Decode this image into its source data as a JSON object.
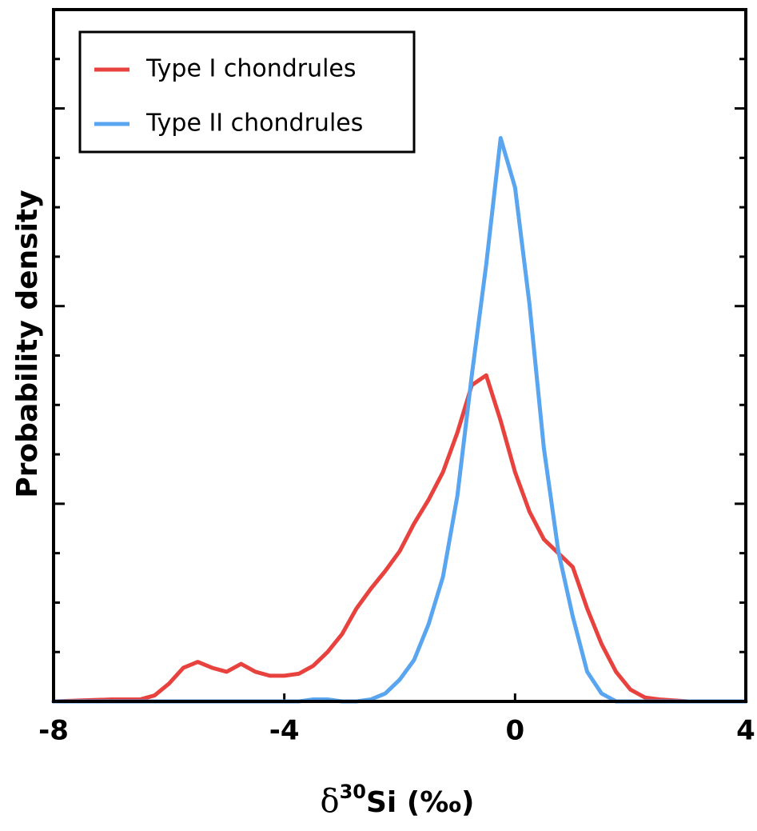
{
  "chart_data": {
    "type": "line",
    "x_label": {
      "base": "δ",
      "superscript": "30",
      "rest": "Si (‰)"
    },
    "y_label": "Probability density",
    "x": [
      -8,
      -7,
      -6.5,
      -6.25,
      -6,
      -5.75,
      -5.5,
      -5.25,
      -5,
      -4.75,
      -4.5,
      -4.25,
      -4,
      -3.75,
      -3.5,
      -3.25,
      -3,
      -2.75,
      -2.5,
      -2.25,
      -2,
      -1.75,
      -1.5,
      -1.25,
      -1,
      -0.75,
      -0.5,
      -0.25,
      0,
      0.25,
      0.5,
      0.75,
      1,
      1.25,
      1.5,
      1.75,
      2,
      2.25,
      2.5,
      3,
      4
    ],
    "series": [
      {
        "name": "Type I chondrules",
        "color": "#e8423f",
        "values": [
          0,
          0.01,
          0.01,
          0.03,
          0.09,
          0.17,
          0.2,
          0.17,
          0.15,
          0.19,
          0.15,
          0.13,
          0.13,
          0.14,
          0.18,
          0.25,
          0.34,
          0.47,
          0.57,
          0.66,
          0.76,
          0.9,
          1.02,
          1.16,
          1.36,
          1.6,
          1.65,
          1.42,
          1.16,
          0.96,
          0.82,
          0.75,
          0.68,
          0.47,
          0.29,
          0.15,
          0.06,
          0.02,
          0.01,
          0,
          0
        ]
      },
      {
        "name": "Type II chondrules",
        "color": "#5aa5f0",
        "values": [
          0,
          0,
          0,
          0,
          0,
          0,
          0,
          0,
          0,
          0,
          0,
          0,
          0,
          0,
          0.01,
          0.01,
          0,
          0,
          0.01,
          0.04,
          0.11,
          0.21,
          0.39,
          0.63,
          1.04,
          1.65,
          2.21,
          2.85,
          2.6,
          2.01,
          1.28,
          0.76,
          0.43,
          0.15,
          0.04,
          0,
          0,
          0,
          0,
          0,
          0
        ]
      }
    ],
    "xlim": [
      -8,
      4
    ],
    "xticks": [
      -8,
      -4,
      0,
      4
    ],
    "ylim": [
      0,
      3.5
    ],
    "yticks": [
      0,
      0.25,
      0.5,
      0.75,
      1,
      1.25,
      1.5,
      1.75,
      2,
      2.25,
      2.5,
      2.75,
      3,
      3.25,
      3.5
    ],
    "legend": "upper left"
  }
}
